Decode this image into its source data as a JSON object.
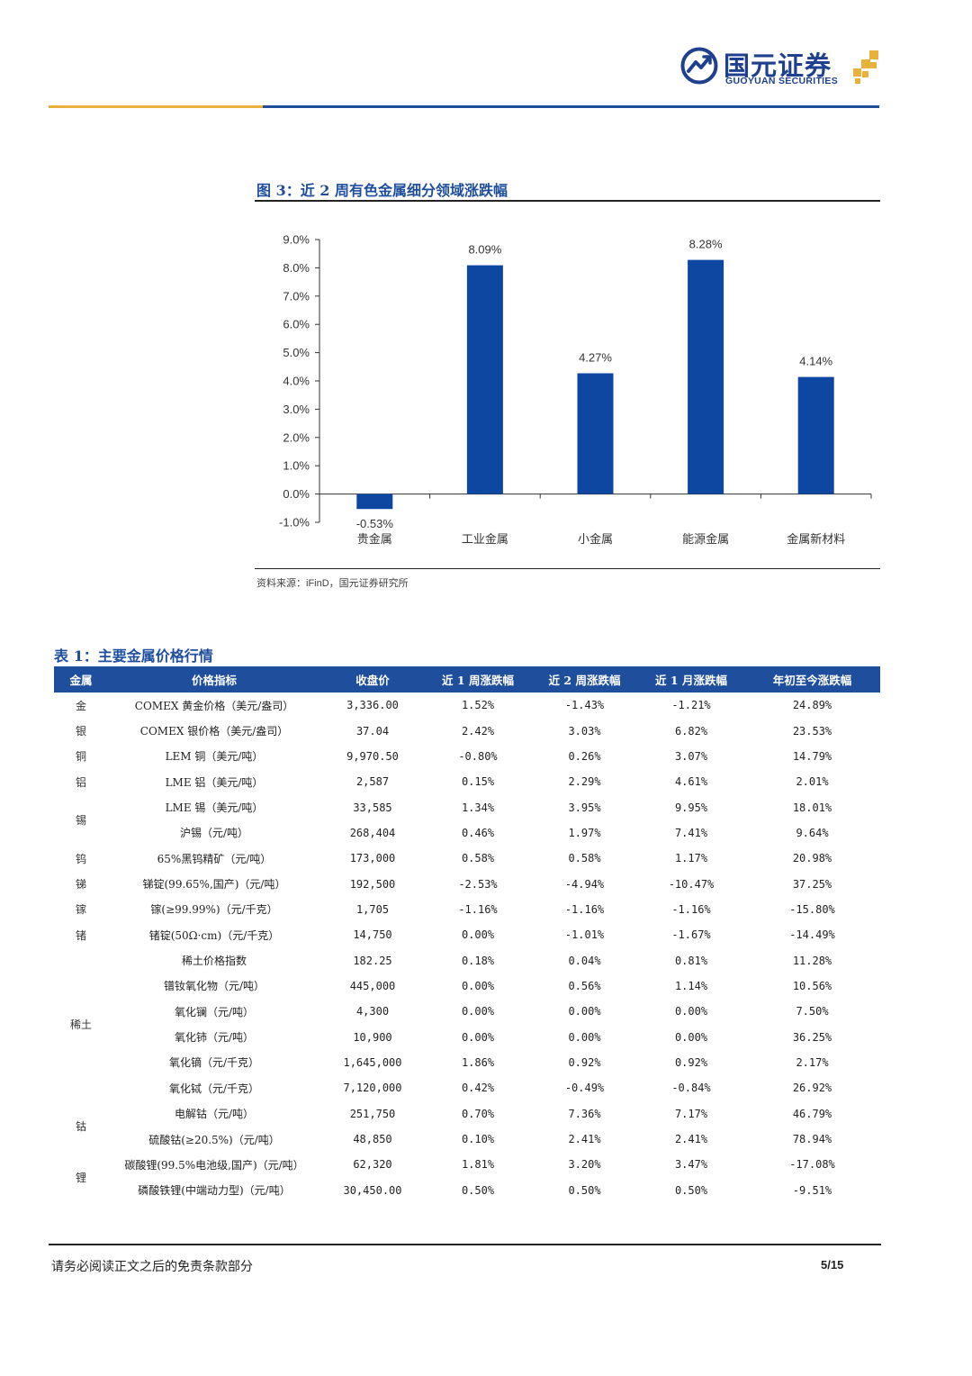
{
  "header": {
    "brand_cn": "国元证券",
    "brand_en": "GUOYUAN SECURITIES",
    "colors": {
      "brand_blue": "#1f4e9d",
      "gold": "#e8b13c"
    }
  },
  "figure": {
    "title": "图 3：近 2 周有色金属细分领域涨跌幅",
    "source_prefix": "资料来源：",
    "source_name": "iFinD",
    "source_suffix": "，国元证券研究所"
  },
  "chart_data": {
    "type": "bar",
    "categories": [
      "贵金属",
      "工业金属",
      "小金属",
      "能源金属",
      "金属新材料"
    ],
    "values": [
      -0.53,
      8.09,
      4.27,
      8.28,
      4.14
    ],
    "data_labels": [
      "-0.53%",
      "8.09%",
      "4.27%",
      "8.28%",
      "4.14%"
    ],
    "y_ticks": [
      "9.0%",
      "8.0%",
      "7.0%",
      "6.0%",
      "5.0%",
      "4.0%",
      "3.0%",
      "2.0%",
      "1.0%",
      "0.0%",
      "-1.0%"
    ],
    "ylim": [
      -1,
      9
    ],
    "bar_color": "#0d47a1",
    "grid": false,
    "legend": "none"
  },
  "table": {
    "title": "表 1：主要金属价格行情",
    "headers": [
      "金属",
      "价格指标",
      "收盘价",
      "近 1 周涨跌幅",
      "近 2 周涨跌幅",
      "近 1 月涨跌幅",
      "年初至今涨跌幅"
    ],
    "groups": [
      {
        "metal": "金",
        "rows": [
          [
            "COMEX 黄金价格（美元/盎司）",
            "3,336.00",
            "1.52%",
            "-1.43%",
            "-1.21%",
            "24.89%"
          ]
        ]
      },
      {
        "metal": "银",
        "rows": [
          [
            "COMEX 银价格（美元/盎司）",
            "37.04",
            "2.42%",
            "3.03%",
            "6.82%",
            "23.53%"
          ]
        ]
      },
      {
        "metal": "铜",
        "rows": [
          [
            "LEM 铜（美元/吨）",
            "9,970.50",
            "-0.80%",
            "0.26%",
            "3.07%",
            "14.79%"
          ]
        ]
      },
      {
        "metal": "铝",
        "rows": [
          [
            "LME 铝（美元/吨）",
            "2,587",
            "0.15%",
            "2.29%",
            "4.61%",
            "2.01%"
          ]
        ]
      },
      {
        "metal": "锡",
        "rows": [
          [
            "LME 锡（美元/吨）",
            "33,585",
            "1.34%",
            "3.95%",
            "9.95%",
            "18.01%"
          ],
          [
            "沪锡（元/吨）",
            "268,404",
            "0.46%",
            "1.97%",
            "7.41%",
            "9.64%"
          ]
        ]
      },
      {
        "metal": "钨",
        "rows": [
          [
            "65%黑钨精矿（元/吨）",
            "173,000",
            "0.58%",
            "0.58%",
            "1.17%",
            "20.98%"
          ]
        ]
      },
      {
        "metal": "锑",
        "rows": [
          [
            "锑锭(99.65%,国产)（元/吨）",
            "192,500",
            "-2.53%",
            "-4.94%",
            "-10.47%",
            "37.25%"
          ]
        ]
      },
      {
        "metal": "镓",
        "rows": [
          [
            "镓(≥99.99%)（元/千克）",
            "1,705",
            "-1.16%",
            "-1.16%",
            "-1.16%",
            "-15.80%"
          ]
        ]
      },
      {
        "metal": "锗",
        "rows": [
          [
            "锗锭(50Ω·cm)（元/千克）",
            "14,750",
            "0.00%",
            "-1.01%",
            "-1.67%",
            "-14.49%"
          ]
        ]
      },
      {
        "metal": "稀土",
        "rows": [
          [
            "稀土价格指数",
            "182.25",
            "0.18%",
            "0.04%",
            "0.81%",
            "11.28%"
          ],
          [
            "镨钕氧化物（元/吨）",
            "445,000",
            "0.00%",
            "0.56%",
            "1.14%",
            "10.56%"
          ],
          [
            "氧化镧（元/吨）",
            "4,300",
            "0.00%",
            "0.00%",
            "0.00%",
            "7.50%"
          ],
          [
            "氧化铈（元/吨）",
            "10,900",
            "0.00%",
            "0.00%",
            "0.00%",
            "36.25%"
          ],
          [
            "氧化镝（元/千克）",
            "1,645,000",
            "1.86%",
            "0.92%",
            "0.92%",
            "2.17%"
          ],
          [
            "氧化铽（元/千克）",
            "7,120,000",
            "0.42%",
            "-0.49%",
            "-0.84%",
            "26.92%"
          ]
        ]
      },
      {
        "metal": "钴",
        "rows": [
          [
            "电解钴（元/吨）",
            "251,750",
            "0.70%",
            "7.36%",
            "7.17%",
            "46.79%"
          ],
          [
            "硫酸钴(≥20.5%)（元/吨）",
            "48,850",
            "0.10%",
            "2.41%",
            "2.41%",
            "78.94%"
          ]
        ]
      },
      {
        "metal": "锂",
        "rows": [
          [
            "碳酸锂(99.5%电池级,国产)（元/吨）",
            "62,320",
            "1.81%",
            "3.20%",
            "3.47%",
            "-17.08%"
          ],
          [
            "磷酸铁锂(中端动力型)（元/吨）",
            "30,450.00",
            "0.50%",
            "0.50%",
            "0.50%",
            "-9.51%"
          ]
        ]
      }
    ]
  },
  "footer": {
    "disclaimer": "请务必阅读正文之后的免责条款部分",
    "page": "5/15"
  }
}
